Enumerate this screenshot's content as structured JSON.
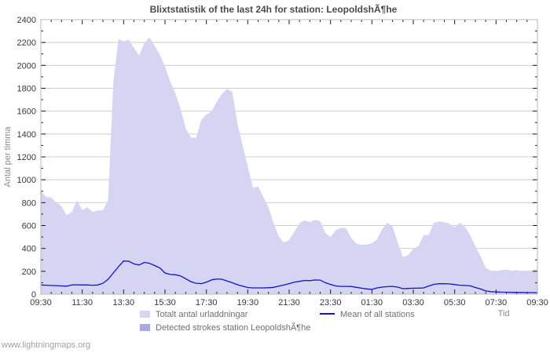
{
  "page": {
    "watermark": "www.lightningmaps.org"
  },
  "chart_data": {
    "type": "area",
    "title": "Blixtstatistik of the last 24h for station: LeopoldshÃ¶he",
    "xlabel": "Tid",
    "ylabel": "Antal per timma",
    "ylim": [
      0,
      2400
    ],
    "y_major_step": 200,
    "y_minor_step": 100,
    "grid": "horizontal-major-only",
    "legend_position": "bottom",
    "x_major_tick_labels": [
      "09:30",
      "11:30",
      "13:30",
      "15:30",
      "17:30",
      "19:30",
      "21:30",
      "23:30",
      "01:30",
      "03:30",
      "05:30",
      "07:30",
      "09:30"
    ],
    "x_minor_tick_interval_minutes": 30,
    "x": [
      "09:30",
      "09:45",
      "10:00",
      "10:15",
      "10:30",
      "10:45",
      "11:00",
      "11:15",
      "11:30",
      "11:45",
      "12:00",
      "12:15",
      "12:30",
      "12:45",
      "13:00",
      "13:15",
      "13:30",
      "13:45",
      "14:00",
      "14:15",
      "14:30",
      "14:45",
      "15:00",
      "15:15",
      "15:30",
      "15:45",
      "16:00",
      "16:15",
      "16:30",
      "16:45",
      "17:00",
      "17:15",
      "17:30",
      "17:45",
      "18:00",
      "18:15",
      "18:30",
      "18:45",
      "19:00",
      "19:15",
      "19:30",
      "19:45",
      "20:00",
      "20:15",
      "20:30",
      "20:45",
      "21:00",
      "21:15",
      "21:30",
      "21:45",
      "22:00",
      "22:15",
      "22:30",
      "22:45",
      "23:00",
      "23:15",
      "23:30",
      "23:45",
      "00:00",
      "00:15",
      "00:30",
      "00:45",
      "01:00",
      "01:15",
      "01:30",
      "01:45",
      "02:00",
      "02:15",
      "02:30",
      "02:45",
      "03:00",
      "03:15",
      "03:30",
      "03:45",
      "04:00",
      "04:15",
      "04:30",
      "04:45",
      "05:00",
      "05:15",
      "05:30",
      "05:45",
      "06:00",
      "06:15",
      "06:30",
      "06:45",
      "07:00",
      "07:15",
      "07:30",
      "07:45",
      "08:00",
      "08:15",
      "08:30",
      "08:45",
      "09:00",
      "09:15",
      "09:30"
    ],
    "series": [
      {
        "name": "Totalt antal urladdningar",
        "type": "area",
        "color": "#d5d5f3",
        "values": [
          900,
          850,
          845,
          800,
          770,
          690,
          720,
          820,
          735,
          760,
          720,
          730,
          735,
          820,
          1850,
          2230,
          2210,
          2225,
          2150,
          2085,
          2195,
          2245,
          2170,
          2095,
          1990,
          1860,
          1755,
          1620,
          1450,
          1370,
          1365,
          1520,
          1570,
          1600,
          1680,
          1750,
          1795,
          1770,
          1490,
          1300,
          1120,
          930,
          940,
          850,
          760,
          620,
          505,
          450,
          475,
          545,
          620,
          645,
          630,
          650,
          640,
          535,
          500,
          560,
          580,
          575,
          490,
          440,
          430,
          435,
          445,
          480,
          570,
          625,
          590,
          450,
          325,
          340,
          395,
          420,
          515,
          520,
          625,
          635,
          630,
          615,
          585,
          625,
          590,
          515,
          420,
          330,
          230,
          205,
          200,
          210,
          215,
          205,
          210,
          200,
          195,
          210,
          220
        ]
      },
      {
        "name": "Detected strokes station LeopoldshÃ¶he",
        "type": "area",
        "color": "#a9a9e6",
        "values": [
          0,
          0,
          0,
          0,
          0,
          0,
          0,
          0,
          0,
          0,
          0,
          0,
          0,
          0,
          0,
          0,
          0,
          0,
          0,
          0,
          0,
          0,
          0,
          0,
          0,
          0,
          0,
          0,
          0,
          0,
          0,
          0,
          0,
          0,
          0,
          0,
          0,
          0,
          0,
          0,
          0,
          0,
          0,
          0,
          0,
          0,
          0,
          0,
          0,
          0,
          0,
          0,
          0,
          0,
          0,
          0,
          0,
          0,
          0,
          0,
          0,
          0,
          0,
          0,
          0,
          0,
          0,
          0,
          0,
          0,
          0,
          0,
          0,
          0,
          0,
          0,
          0,
          0,
          0,
          0,
          0,
          0,
          0,
          0,
          0,
          0,
          0,
          0,
          0,
          0,
          0,
          0,
          0,
          0,
          0,
          0,
          0
        ]
      },
      {
        "name": "Mean of all stations",
        "type": "line",
        "color": "#1212c8",
        "values": [
          80,
          78,
          76,
          75,
          72,
          70,
          80,
          82,
          80,
          80,
          78,
          80,
          95,
          130,
          185,
          240,
          290,
          288,
          265,
          255,
          278,
          270,
          250,
          230,
          185,
          172,
          170,
          160,
          135,
          110,
          95,
          92,
          105,
          125,
          133,
          130,
          115,
          100,
          82,
          70,
          58,
          55,
          55,
          55,
          56,
          60,
          70,
          80,
          92,
          105,
          112,
          120,
          118,
          124,
          123,
          100,
          85,
          72,
          68,
          68,
          67,
          60,
          52,
          46,
          42,
          55,
          62,
          66,
          68,
          62,
          48,
          50,
          52,
          53,
          55,
          72,
          86,
          91,
          91,
          90,
          84,
          78,
          76,
          73,
          58,
          45,
          28,
          22,
          20,
          18,
          17,
          16,
          15,
          15,
          14,
          14,
          13
        ]
      }
    ]
  }
}
